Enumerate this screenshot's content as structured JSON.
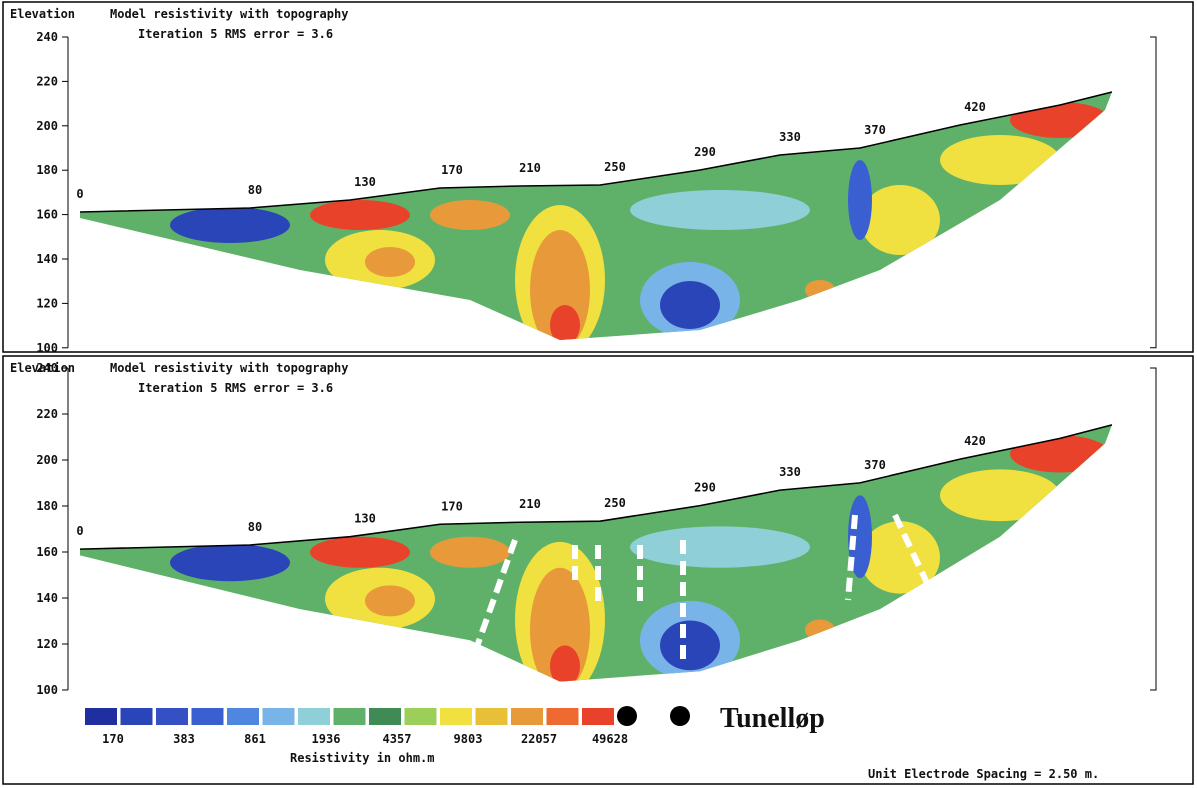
{
  "panels": [
    {
      "axis_title": "Elevation",
      "title": "Model resistivity with topography",
      "subtitle": "Iteration 5 RMS error = 3.6",
      "y_ticks": [
        "240",
        "220",
        "200",
        "180",
        "160",
        "140",
        "120",
        "100"
      ],
      "distance_labels": [
        "0",
        "80",
        "130",
        "170",
        "210",
        "250",
        "290",
        "330",
        "370",
        "420"
      ]
    },
    {
      "axis_title": "Elevation",
      "title": "Model resistivity with topography",
      "subtitle": "Iteration 5 RMS error = 3.6",
      "y_ticks": [
        "240",
        "220",
        "200",
        "180",
        "160",
        "140",
        "120",
        "100"
      ],
      "distance_labels": [
        "0",
        "80",
        "130",
        "170",
        "210",
        "250",
        "290",
        "330",
        "370",
        "420"
      ]
    }
  ],
  "legend": {
    "values": [
      "170",
      "383",
      "861",
      "1936",
      "4357",
      "9803",
      "22057",
      "49628"
    ],
    "title": "Resistivity in ohm.m",
    "marker_label": "Tunelløp"
  },
  "footer": "Unit Electrode Spacing = 2.50 m."
}
